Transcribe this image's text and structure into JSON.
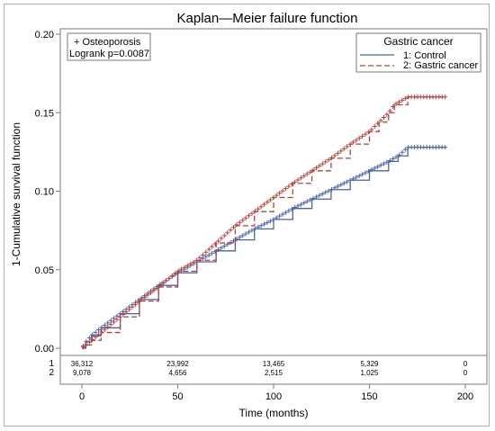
{
  "chart_data": {
    "type": "line",
    "title": "Kaplan—Meier failure function",
    "xlabel": "Time (months)",
    "ylabel": "1-Cumulative survival function",
    "xlim": [
      0,
      200
    ],
    "ylim": [
      0,
      0.2
    ],
    "x_ticks": [
      0,
      50,
      100,
      150,
      200
    ],
    "y_ticks": [
      "0.00",
      "0.05",
      "0.10",
      "0.15",
      "0.20"
    ],
    "legend": {
      "title": "Gastric cancer",
      "position": "top-right",
      "entries": [
        "1: Control",
        "2: Gastric cancer"
      ]
    },
    "annotation": [
      "+ Osteoporosis",
      "Logrank p=0.0087"
    ],
    "series": [
      {
        "name": "1: Control",
        "color": "#4a63a8",
        "dash": "solid",
        "x": [
          0,
          2,
          5,
          10,
          20,
          30,
          40,
          50,
          60,
          70,
          80,
          90,
          100,
          110,
          120,
          130,
          140,
          150,
          160,
          165,
          170,
          180,
          190
        ],
        "y": [
          0,
          0.004,
          0.008,
          0.013,
          0.022,
          0.031,
          0.04,
          0.048,
          0.055,
          0.062,
          0.069,
          0.076,
          0.082,
          0.089,
          0.095,
          0.101,
          0.107,
          0.113,
          0.119,
          0.1225,
          0.128,
          0.128,
          0.128
        ]
      },
      {
        "name": "2: Gastric cancer",
        "color": "#b5403a",
        "dash": "dashed",
        "x": [
          0,
          2,
          5,
          10,
          20,
          30,
          40,
          50,
          60,
          70,
          80,
          90,
          100,
          110,
          120,
          130,
          140,
          150,
          155,
          160,
          163,
          170,
          180,
          190
        ],
        "y": [
          0,
          0.002,
          0.005,
          0.01,
          0.02,
          0.03,
          0.039,
          0.049,
          0.056,
          0.067,
          0.078,
          0.087,
          0.096,
          0.105,
          0.113,
          0.121,
          0.13,
          0.138,
          0.144,
          0.15,
          0.155,
          0.16,
          0.16,
          0.16
        ]
      }
    ],
    "risk_table": {
      "times": [
        0,
        50,
        100,
        150,
        200
      ],
      "rows": [
        {
          "label": "1",
          "counts": [
            "36,312",
            "23,992",
            "13,465",
            "5,329",
            "0"
          ]
        },
        {
          "label": "2",
          "counts": [
            "9,078",
            "4,656",
            "2,515",
            "1,025",
            "0"
          ]
        }
      ]
    }
  }
}
